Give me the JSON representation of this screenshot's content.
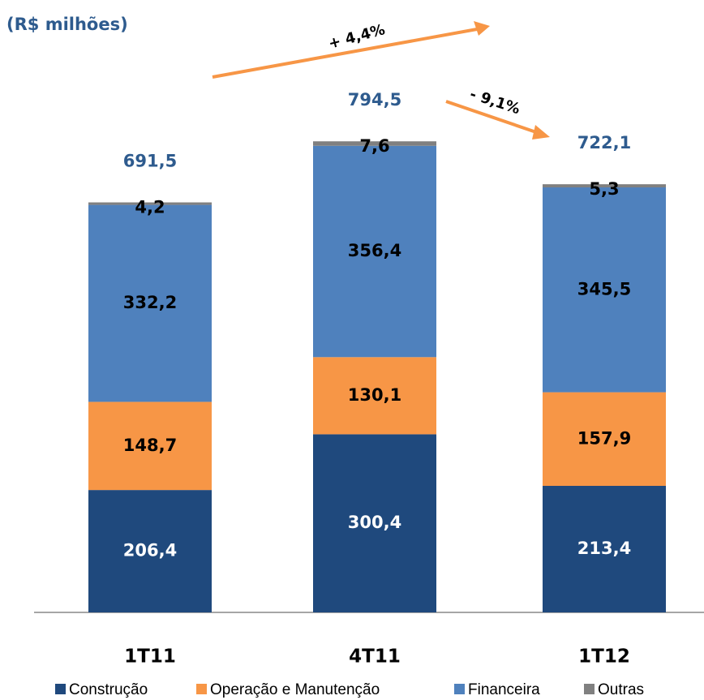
{
  "chart_data": {
    "type": "stacked_bar",
    "title": "(R$ milhões)",
    "categories": [
      "1T11",
      "4T11",
      "1T12"
    ],
    "series": [
      {
        "name": "Construção",
        "color": "#1f497d",
        "values": [
          206.4,
          300.4,
          213.4
        ],
        "value_labels": [
          "206,4",
          "300,4",
          "213,4"
        ]
      },
      {
        "name": "Operação e Manutenção",
        "color": "#f79646",
        "values": [
          148.7,
          130.1,
          157.9
        ],
        "value_labels": [
          "148,7",
          "130,1",
          "157,9"
        ]
      },
      {
        "name": "Financeira",
        "color": "#4f81bd",
        "values": [
          332.2,
          356.4,
          345.5
        ],
        "value_labels": [
          "332,2",
          "356,4",
          "345,5"
        ]
      },
      {
        "name": "Outras",
        "color": "#808080",
        "values": [
          4.2,
          7.6,
          5.3
        ],
        "value_labels": [
          "4,2",
          "7,6",
          "5,3"
        ]
      }
    ],
    "totals": [
      691.5,
      794.5,
      722.1
    ],
    "total_labels": [
      "691,5",
      "794,5",
      "722,1"
    ],
    "annotations": [
      "+ 4,4%",
      "- 9,1%"
    ],
    "ylim": [
      0,
      1000
    ],
    "legend": "bottom"
  }
}
